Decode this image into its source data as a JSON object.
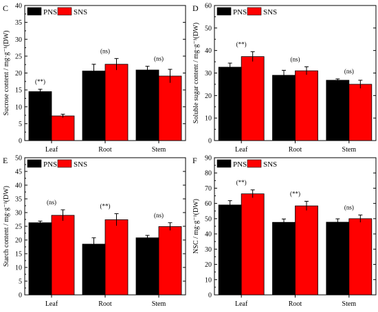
{
  "colors": {
    "pns": "#000000",
    "sns": "#ff0000"
  },
  "chart_data": [
    {
      "panel": "C",
      "type": "bar",
      "categories": [
        "Leaf",
        "Root",
        "Stem"
      ],
      "ylabel": "Sucrose content / mg·g⁻¹(DW)",
      "ylim": [
        0,
        40
      ],
      "yticks": [
        0,
        5,
        10,
        15,
        20,
        25,
        30,
        35,
        40
      ],
      "series": [
        {
          "name": "PNS",
          "values": [
            14.5,
            20.6,
            20.9
          ],
          "errors": [
            0.7,
            2.0,
            1.1
          ]
        },
        {
          "name": "SNS",
          "values": [
            7.3,
            22.6,
            19.1
          ],
          "errors": [
            0.5,
            1.7,
            2.0
          ]
        }
      ],
      "annotations": [
        "(**)",
        "(ns)",
        "(ns)"
      ]
    },
    {
      "panel": "D",
      "type": "bar",
      "categories": [
        "Leaf",
        "Root",
        "Stem"
      ],
      "ylabel": "Soluble sugar content / mg·g⁻¹(DW)",
      "ylim": [
        0,
        60
      ],
      "yticks": [
        0,
        10,
        20,
        30,
        40,
        50,
        60
      ],
      "series": [
        {
          "name": "PNS",
          "values": [
            32.6,
            29.0,
            26.8
          ],
          "errors": [
            1.8,
            2.2,
            0.6
          ]
        },
        {
          "name": "SNS",
          "values": [
            37.3,
            31.0,
            25.0
          ],
          "errors": [
            2.2,
            1.8,
            1.8
          ]
        }
      ],
      "annotations": [
        "(**)",
        "(ns)",
        "(ns)"
      ]
    },
    {
      "panel": "E",
      "type": "bar",
      "categories": [
        "Leaf",
        "Root",
        "Stem"
      ],
      "ylabel": "Starch content / mg·g⁻¹(DW)",
      "ylim": [
        0,
        50
      ],
      "yticks": [
        0,
        5,
        10,
        15,
        20,
        25,
        30,
        35,
        40,
        45,
        50
      ],
      "series": [
        {
          "name": "PNS",
          "values": [
            26.3,
            18.5,
            20.8
          ],
          "errors": [
            0.6,
            2.3,
            0.9
          ]
        },
        {
          "name": "SNS",
          "values": [
            29.0,
            27.4,
            24.9
          ],
          "errors": [
            2.0,
            2.2,
            1.4
          ]
        }
      ],
      "annotations": [
        "(ns)",
        "(**)",
        "(ns)"
      ]
    },
    {
      "panel": "F",
      "type": "bar",
      "categories": [
        "Leaf",
        "Root",
        "Stem"
      ],
      "ylabel": "NSC / mg·g⁻¹(DW)",
      "ylim": [
        0,
        90
      ],
      "yticks": [
        0,
        10,
        20,
        30,
        40,
        50,
        60,
        70,
        80,
        90
      ],
      "series": [
        {
          "name": "PNS",
          "values": [
            59.0,
            47.6,
            47.7
          ],
          "errors": [
            2.8,
            2.2,
            2.2
          ]
        },
        {
          "name": "SNS",
          "values": [
            66.3,
            58.4,
            50.0
          ],
          "errors": [
            2.6,
            3.0,
            2.4
          ]
        }
      ],
      "annotations": [
        "(**)",
        "(**)",
        "(ns)"
      ]
    }
  ]
}
